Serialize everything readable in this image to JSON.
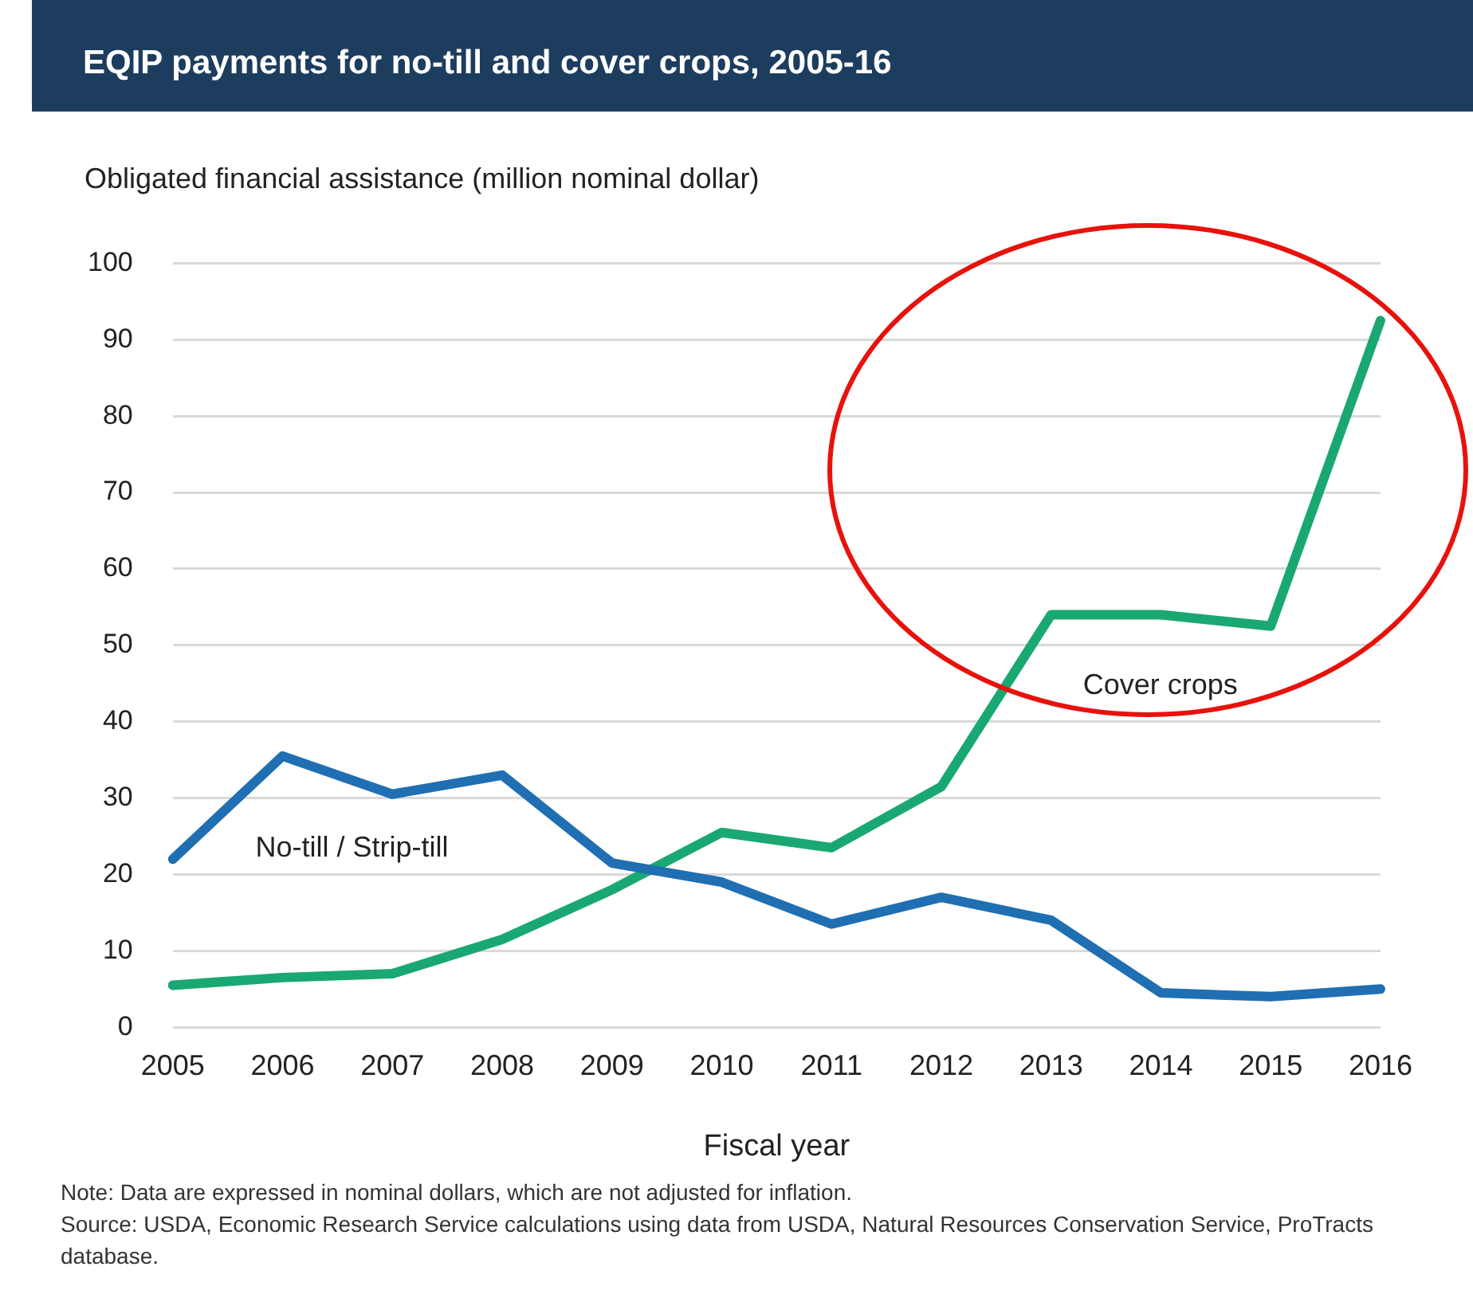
{
  "chart_data": {
    "type": "line",
    "title": "EQIP payments for no-till and cover crops, 2005-16",
    "ylabel": "Obligated financial assistance (million nominal dollar)",
    "xlabel": "Fiscal year",
    "categories": [
      "2005",
      "2006",
      "2007",
      "2008",
      "2009",
      "2010",
      "2011",
      "2012",
      "2013",
      "2014",
      "2015",
      "2016"
    ],
    "series": [
      {
        "name": "No-till / Strip-till",
        "color": "#1f6fb2",
        "values": [
          22,
          35.5,
          30.5,
          33,
          21.5,
          19,
          13.5,
          17,
          14,
          4.5,
          4,
          5
        ]
      },
      {
        "name": "Cover crops",
        "color": "#1aa872",
        "values": [
          5.5,
          6.5,
          7,
          11.5,
          18,
          25.5,
          23.5,
          31.5,
          54,
          54,
          52.5,
          92.5
        ]
      }
    ],
    "ylim": [
      0,
      100
    ],
    "yticks": [
      0,
      10,
      20,
      30,
      40,
      50,
      60,
      70,
      80,
      90,
      100
    ],
    "grid": "y",
    "legend": false,
    "marker": "none",
    "line_style": "solid",
    "annotations": [
      "Note: Data are expressed in nominal dollars, which are not adjusted for inflation.",
      "Source: USDA, Economic Research Service calculations using data from USDA, Natural Resources Conservation Service, ProTracts database."
    ]
  }
}
